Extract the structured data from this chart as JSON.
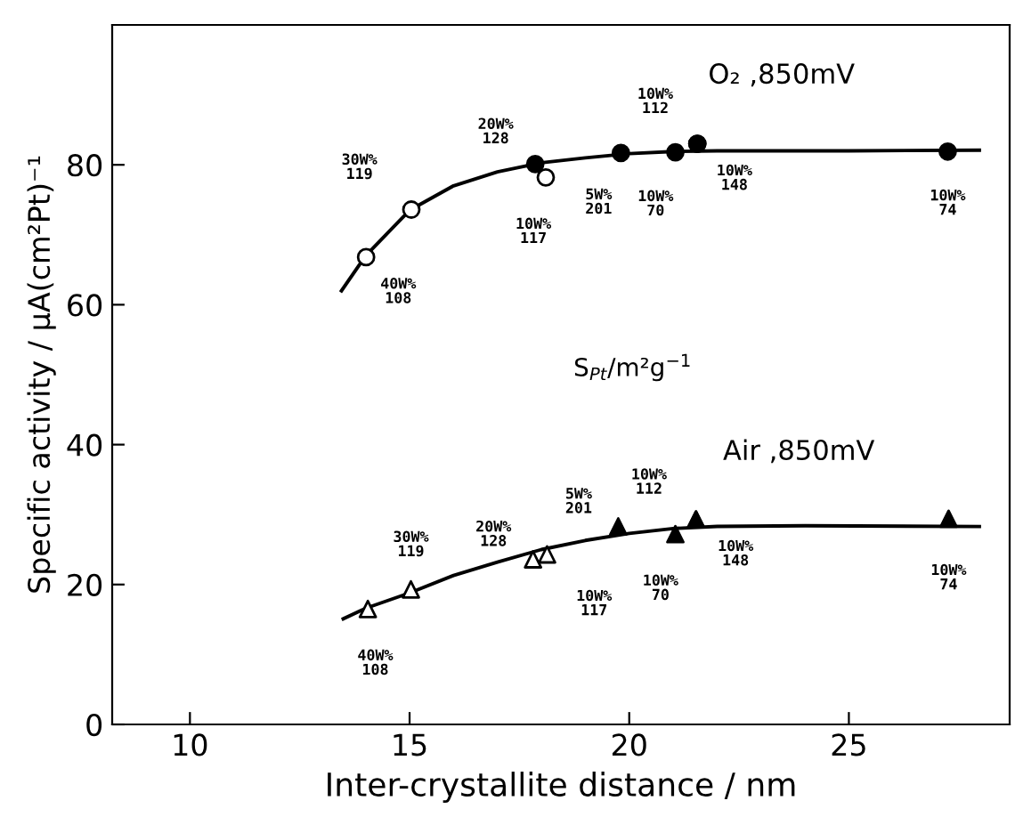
{
  "chart_data": {
    "type": "scatter",
    "xlabel": "Inter-crystallite distance / nm",
    "ylabel": "Specific activity / μA(cm²Pt)⁻¹",
    "xlim": [
      8.23,
      28.66
    ],
    "xticks": [
      10,
      15,
      20,
      25
    ],
    "ylim": [
      0,
      100
    ],
    "yticks": [
      0,
      20,
      40,
      60,
      80
    ],
    "grid": false,
    "legend": false,
    "series": [
      {
        "marker": "circle",
        "color": "#ffffff",
        "x": [
          14.01,
          15.04,
          18.1
        ],
        "values": [
          66.8,
          73.6,
          78.2
        ],
        "value_labels": [
          "40W%\n108",
          "30W%\n119",
          "10W%\n117"
        ]
      },
      {
        "marker": "circle",
        "color": "#000000",
        "x": [
          17.86,
          19.81,
          21.05,
          21.55,
          21.55,
          27.25
        ],
        "values": [
          80.1,
          81.7,
          81.8,
          83.0,
          83.0,
          81.9
        ],
        "value_labels": [
          "20W%\n128",
          "5W%\n201",
          "10W%\n70",
          "10W%\n112",
          "10W%\n148",
          "10W%\n74"
        ]
      },
      {
        "type": "line",
        "name": "O₂ ,850mV",
        "color": "#000000",
        "marker": "none",
        "x": [
          13.45,
          14,
          15,
          16,
          17,
          18,
          19,
          20,
          21,
          22,
          25,
          27.97
        ],
        "values": [
          62,
          67,
          73.5,
          77,
          79,
          80.3,
          81,
          81.6,
          81.9,
          82,
          82,
          82.1
        ]
      },
      {
        "marker": "triangle",
        "color": "#ffffff",
        "x": [
          14.05,
          15.03,
          17.81,
          18.13
        ],
        "values": [
          16.5,
          19.3,
          23.6,
          24.3
        ],
        "value_labels": [
          "40W%\n108",
          "30W%\n119",
          "20W%\n128",
          "10W%\n117"
        ]
      },
      {
        "marker": "triangle",
        "color": "#000000",
        "x": [
          19.75,
          21.05,
          21.52,
          21.52,
          27.27
        ],
        "values": [
          28.3,
          27.2,
          29.3,
          29.3,
          29.4
        ],
        "value_labels": [
          "5W%\n201",
          "10W%\n70",
          "10W%\n112",
          "10W%\n148",
          "10W%\n74"
        ]
      },
      {
        "type": "line",
        "name": "Air ,850mV",
        "color": "#000000",
        "marker": "none",
        "x": [
          13.49,
          14,
          15,
          16,
          17,
          18,
          19,
          20,
          21,
          22,
          24,
          27.97
        ],
        "values": [
          15.1,
          16.6,
          18.8,
          21.3,
          23.2,
          25,
          26.3,
          27.3,
          28,
          28.3,
          28.4,
          28.3
        ]
      }
    ],
    "annotations": [
      "S$_{Pt}$/m²g$^{−1}$"
    ]
  }
}
